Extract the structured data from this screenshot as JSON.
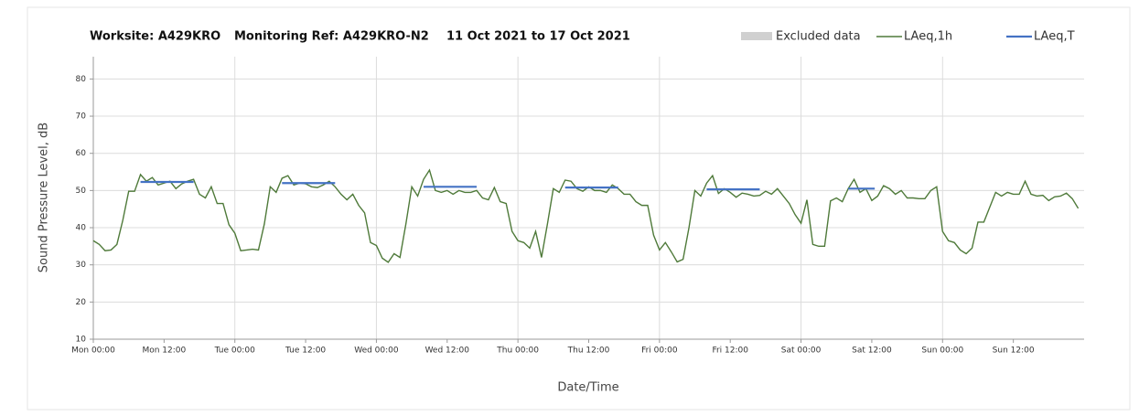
{
  "chart_data": {
    "type": "line",
    "title": [
      "Worksite: A429KRO",
      "Monitoring Ref: A429KRO-N2",
      "11 Oct 2021 to 17 Oct 2021"
    ],
    "xlabel": "Date/Time",
    "ylabel": "Sound Pressure Level, dB",
    "excluded": {
      "name": "Excluded data",
      "color": "#d0d0d0"
    },
    "xlim": [
      0,
      168
    ],
    "xticks": [
      {
        "value": 0,
        "label": "Mon 00:00"
      },
      {
        "value": 12,
        "label": "Mon 12:00"
      },
      {
        "value": 24,
        "label": "Tue 00:00"
      },
      {
        "value": 36,
        "label": "Tue 12:00"
      },
      {
        "value": 48,
        "label": "Wed 00:00"
      },
      {
        "value": 60,
        "label": "Wed 12:00"
      },
      {
        "value": 72,
        "label": "Thu 00:00"
      },
      {
        "value": 84,
        "label": "Thu 12:00"
      },
      {
        "value": 96,
        "label": "Fri 00:00"
      },
      {
        "value": 108,
        "label": "Fri 12:00"
      },
      {
        "value": 120,
        "label": "Sat 00:00"
      },
      {
        "value": 132,
        "label": "Sat 12:00"
      },
      {
        "value": 144,
        "label": "Sun 00:00"
      },
      {
        "value": 156,
        "label": "Sun 12:00"
      }
    ],
    "ylim": [
      10,
      86
    ],
    "yticks": [
      10,
      20,
      30,
      40,
      50,
      60,
      70,
      80
    ],
    "grid": true,
    "series": [
      {
        "name": "LAeq,1h",
        "color": "#4f7a3a",
        "values": [
          36.5,
          35.5,
          33.8,
          34,
          35.5,
          42,
          49.8,
          49.8,
          54.3,
          52.5,
          53.5,
          51.5,
          52,
          52.5,
          50.5,
          51.8,
          52.5,
          53,
          49,
          48,
          51,
          46.5,
          46.5,
          40.8,
          38.5,
          33.8,
          34,
          34.2,
          34,
          41,
          51,
          49.5,
          53.3,
          54,
          51.5,
          52,
          51.8,
          51,
          50.8,
          51.5,
          52.5,
          51,
          49,
          47.5,
          49,
          46,
          44,
          36,
          35.2,
          31.8,
          30.7,
          33,
          32,
          41,
          51,
          48.5,
          53,
          55.5,
          50,
          49.5,
          50,
          49,
          50,
          49.5,
          49.5,
          50,
          48,
          47.5,
          50.8,
          47,
          46.5,
          39,
          36.5,
          36,
          34.5,
          39,
          32,
          41,
          50.5,
          49.5,
          52.8,
          52.5,
          50.5,
          49.8,
          51,
          50,
          50,
          49.5,
          51.5,
          50.5,
          49,
          49,
          47,
          46,
          46,
          38,
          34,
          36,
          33.5,
          30.8,
          31.5,
          40,
          50,
          48.5,
          52,
          54,
          49.2,
          50.5,
          49.5,
          48.2,
          49.3,
          49,
          48.5,
          48.7,
          49.8,
          49,
          50.5,
          48.5,
          46.5,
          43.5,
          41.2,
          47.5,
          35.5,
          35,
          35,
          47.2,
          48,
          47,
          50.5,
          53,
          49.5,
          50.5,
          47.3,
          48.5,
          51.3,
          50.5,
          49,
          50,
          48,
          48,
          47.8,
          47.8,
          50,
          51,
          39,
          36.5,
          36,
          34,
          33,
          34.5,
          41.5,
          41.5,
          45.5,
          49.5,
          48.5,
          49.5,
          49,
          49,
          52.5,
          49,
          48.5,
          48.7,
          47.3,
          48.3,
          48.5,
          49.3,
          47.8,
          45.2
        ]
      },
      {
        "name": "LAeq,T",
        "color": "#4472c4",
        "periods": [
          {
            "start": 8,
            "end": 17,
            "value": 52.3
          },
          {
            "start": 32,
            "end": 41,
            "value": 52
          },
          {
            "start": 56,
            "end": 65,
            "value": 51
          },
          {
            "start": 80,
            "end": 89,
            "value": 50.8
          },
          {
            "start": 104,
            "end": 113,
            "value": 50.3
          },
          {
            "start": 128,
            "end": 132.5,
            "value": 50.5
          }
        ]
      }
    ]
  }
}
